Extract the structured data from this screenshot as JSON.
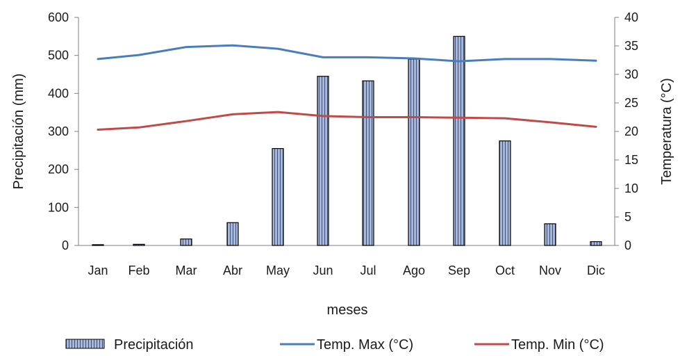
{
  "chart_data": {
    "type": "bar",
    "categories": [
      "Jan",
      "Feb",
      "Mar",
      "Abr",
      "May",
      "Jun",
      "Jul",
      "Ago",
      "Sep",
      "Oct",
      "Nov",
      "Dic"
    ],
    "xlabel": "meses",
    "ylabel": "Precipitación (mm)",
    "y2label": "Temperatura (°C)",
    "ylim": [
      0,
      600
    ],
    "y2lim": [
      0,
      40
    ],
    "yticks": [
      "0",
      "100",
      "200",
      "300",
      "400",
      "500",
      "600"
    ],
    "y2ticks": [
      "0",
      "5",
      "10",
      "15",
      "20",
      "25",
      "30",
      "35",
      "40"
    ],
    "grid": false,
    "legend_position": "bottom",
    "series": [
      {
        "name": "Precipitación",
        "type": "bar",
        "axis": "left",
        "color": "#9db0d6",
        "values": [
          2,
          3,
          17,
          60,
          255,
          445,
          433,
          490,
          550,
          275,
          57,
          10
        ]
      },
      {
        "name": "Temp. Max (°C)",
        "type": "line",
        "axis": "right",
        "color": "#4a7ebb",
        "values": [
          32.7,
          33.4,
          34.8,
          35.1,
          34.5,
          33.0,
          33.0,
          32.8,
          32.3,
          32.7,
          32.7,
          32.4
        ]
      },
      {
        "name": "Temp. Min (°C)",
        "type": "line",
        "axis": "right",
        "color": "#be4b48",
        "values": [
          20.3,
          20.7,
          21.8,
          23.0,
          23.4,
          22.7,
          22.5,
          22.5,
          22.4,
          22.3,
          21.6,
          20.8
        ]
      }
    ]
  }
}
